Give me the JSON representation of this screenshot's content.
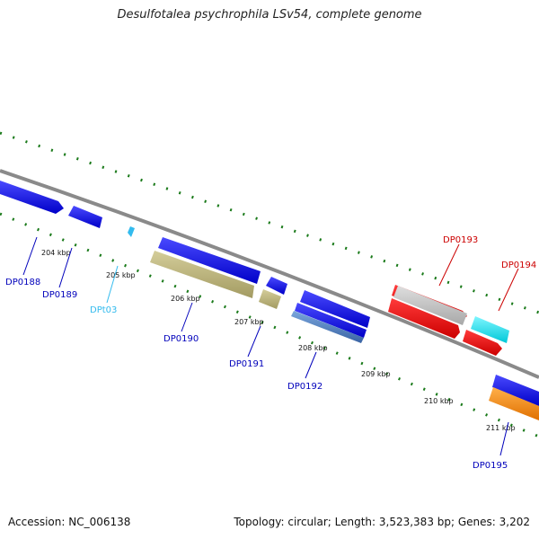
{
  "title": "Desulfotalea psychrophila LSv54, complete genome",
  "footer": {
    "accession": "Accession: NC_006138",
    "summary": "Topology: circular; Length: 3,523,383 bp; Genes: 3,202"
  },
  "ticks": [
    "204 kbp",
    "205 kbp",
    "206 kbp",
    "207 kbp",
    "208 kbp",
    "209 kbp",
    "210 kbp",
    "211 kbp"
  ],
  "genes": [
    {
      "name": "DP0188",
      "color": "#0000bb"
    },
    {
      "name": "DP0189",
      "color": "#0000bb"
    },
    {
      "name": "DPt03",
      "color": "#33bbee"
    },
    {
      "name": "DP0190",
      "color": "#0000bb"
    },
    {
      "name": "DP0191",
      "color": "#0000bb"
    },
    {
      "name": "DP0192",
      "color": "#0000bb"
    },
    {
      "name": "DP0193",
      "color": "#cc0000"
    },
    {
      "name": "DP0194",
      "color": "#cc0000"
    },
    {
      "name": "DP0195",
      "color": "#0000bb"
    }
  ],
  "colors": {
    "backbone": "#8a8a8a",
    "tick": "#1a7a1a",
    "blue": "#0000ee",
    "olive": "#b8b07a",
    "grey": "#c0c0c0",
    "red": "#ee0000",
    "cyan": "#00e8f0",
    "orange": "#ff8800",
    "steel": "#4a7aba"
  }
}
